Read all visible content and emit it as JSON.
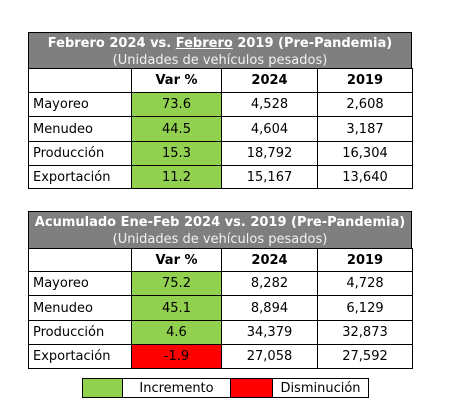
{
  "tables": [
    {
      "title_parts": [
        "Febrero 2024 vs. ",
        "Febrero",
        " 2019 (Pre-Pandemia)"
      ],
      "subtitle": "(Unidades de vehículos pesados)",
      "header": [
        "Var %",
        "2024",
        "2019"
      ],
      "rows": [
        [
          "Mayoreo",
          "73.6",
          "4,528",
          "2,608"
        ],
        [
          "Menudeo",
          "44.5",
          "4,604",
          "3,187"
        ],
        [
          "Producción",
          "15.3",
          "18,792",
          "16,304"
        ],
        [
          "Exportación",
          "11.2",
          "15,167",
          "13,640"
        ]
      ]
    },
    {
      "title_parts": [
        "Acumulado Ene-Feb 2024 vs. 2019 (Pre-Pandemia)"
      ],
      "subtitle": "(Unidades de vehículos pesados)",
      "header": [
        "Var %",
        "2024",
        "2019"
      ],
      "rows": [
        [
          "Mayoreo",
          "75.2",
          "8,282",
          "4,728"
        ],
        [
          "Menudeo",
          "45.1",
          "8,894",
          "6,129"
        ],
        [
          "Producción",
          "4.6",
          "34,379",
          "32,873"
        ],
        [
          "Exportación",
          "-1.9",
          "27,058",
          "27,592"
        ]
      ]
    }
  ],
  "legend": [
    {
      "label": "Incremento",
      "color": "#92d050"
    },
    {
      "label": "Disminución",
      "color": "#ff0000"
    }
  ]
}
